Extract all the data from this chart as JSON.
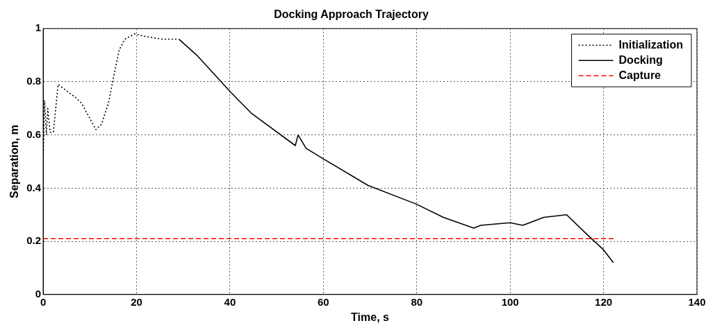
{
  "chart_data": {
    "type": "line",
    "title": "Docking Approach Trajectory",
    "xlabel": "Time, s",
    "ylabel": "Separation, m",
    "xlim": [
      0,
      140
    ],
    "xticks": [
      0,
      20,
      40,
      60,
      80,
      100,
      120,
      140
    ],
    "ylim": [
      0,
      1
    ],
    "yticks": [
      0,
      0.2,
      0.4,
      0.6,
      0.8,
      1
    ],
    "grid": true,
    "legend": "top right",
    "marker": "none",
    "series": [
      {
        "name": "Initialization",
        "color": "#000000",
        "line_style": "dotted",
        "x": [
          0,
          0.3,
          0.7,
          1.0,
          1.5,
          2.2,
          3.2,
          7.0,
          8.2,
          11.3,
          12.5,
          14,
          15,
          16.3,
          17.5,
          19.6,
          22,
          25.6,
          29.1
        ],
        "values": [
          0.49,
          0.73,
          0.6,
          0.7,
          0.61,
          0.61,
          0.79,
          0.74,
          0.72,
          0.62,
          0.64,
          0.72,
          0.81,
          0.92,
          0.96,
          0.98,
          0.97,
          0.96,
          0.96
        ]
      },
      {
        "name": "Docking",
        "color": "#000000",
        "line_style": "solid",
        "x": [
          29.1,
          32.9,
          40.2,
          44.7,
          54,
          54.6,
          56.3,
          60,
          69.6,
          79.9,
          85.7,
          92.2,
          93.7,
          100,
          102.7,
          107.2,
          112.1,
          116.8,
          119.9,
          122.1
        ],
        "values": [
          0.96,
          0.9,
          0.76,
          0.68,
          0.56,
          0.6,
          0.55,
          0.51,
          0.41,
          0.34,
          0.29,
          0.25,
          0.26,
          0.27,
          0.26,
          0.29,
          0.3,
          0.22,
          0.17,
          0.12
        ]
      },
      {
        "name": "Capture",
        "color": "#ff0000",
        "line_style": "dashed",
        "x": [
          0,
          122.3
        ],
        "values": [
          0.21,
          0.21
        ]
      }
    ]
  }
}
